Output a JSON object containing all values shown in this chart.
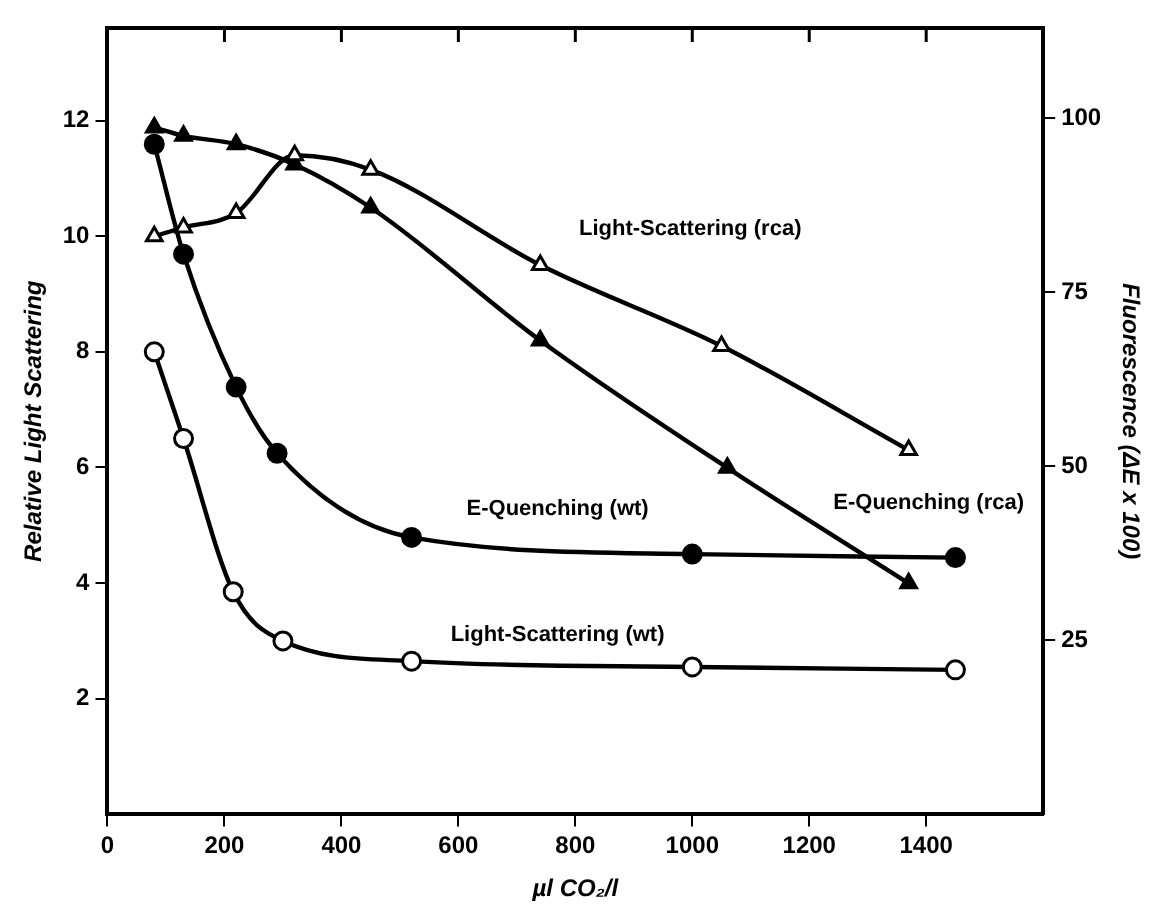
{
  "chart_data": {
    "type": "line",
    "xlabel": "µl CO₂/l",
    "ylabel": "Relative Light Scattering",
    "y2label": "Fluorescence (ΔE x 100)",
    "xlim": [
      0,
      1600
    ],
    "xticks": [
      0,
      200,
      400,
      600,
      800,
      1000,
      1200,
      1400
    ],
    "ylim": [
      0,
      13.6
    ],
    "yticks": [
      2,
      4,
      6,
      8,
      10,
      12
    ],
    "y2lim": [
      0,
      113
    ],
    "y2ticks": [
      25,
      50,
      75,
      100
    ],
    "grid": false,
    "legend": false,
    "line_style": "solid",
    "series": [
      {
        "name": "Light-Scattering (rca)",
        "color": "#000000",
        "marker": "triangle",
        "x": [
          80,
          130,
          220,
          320,
          450,
          740,
          1050,
          1370
        ],
        "values": [
          10.0,
          10.15,
          10.4,
          11.4,
          11.15,
          9.5,
          8.1,
          6.3
        ]
      },
      {
        "name": "E-Quenching (rca)",
        "color": "#000000",
        "marker": "triangle",
        "axis": "y2",
        "x": [
          80,
          130,
          220,
          320,
          450,
          740,
          1060,
          1370
        ],
        "values": [
          98.7,
          97.5,
          96.3,
          93.4,
          87.2,
          68.1,
          49.8,
          33.2
        ]
      },
      {
        "name": "E-Quenching (wt)",
        "color": "#000000",
        "marker": "circle",
        "axis": "y2",
        "x": [
          80,
          130,
          220,
          290,
          520,
          1000,
          1450
        ],
        "values": [
          96.3,
          80.5,
          61.4,
          51.9,
          39.8,
          37.4,
          36.9
        ]
      },
      {
        "name": "Light-Scattering (wt)",
        "color": "#000000",
        "marker": "circle",
        "x": [
          80,
          130,
          215,
          300,
          520,
          1000,
          1450
        ],
        "values": [
          8.0,
          6.5,
          3.85,
          3.0,
          2.65,
          2.55,
          2.5
        ]
      }
    ]
  }
}
